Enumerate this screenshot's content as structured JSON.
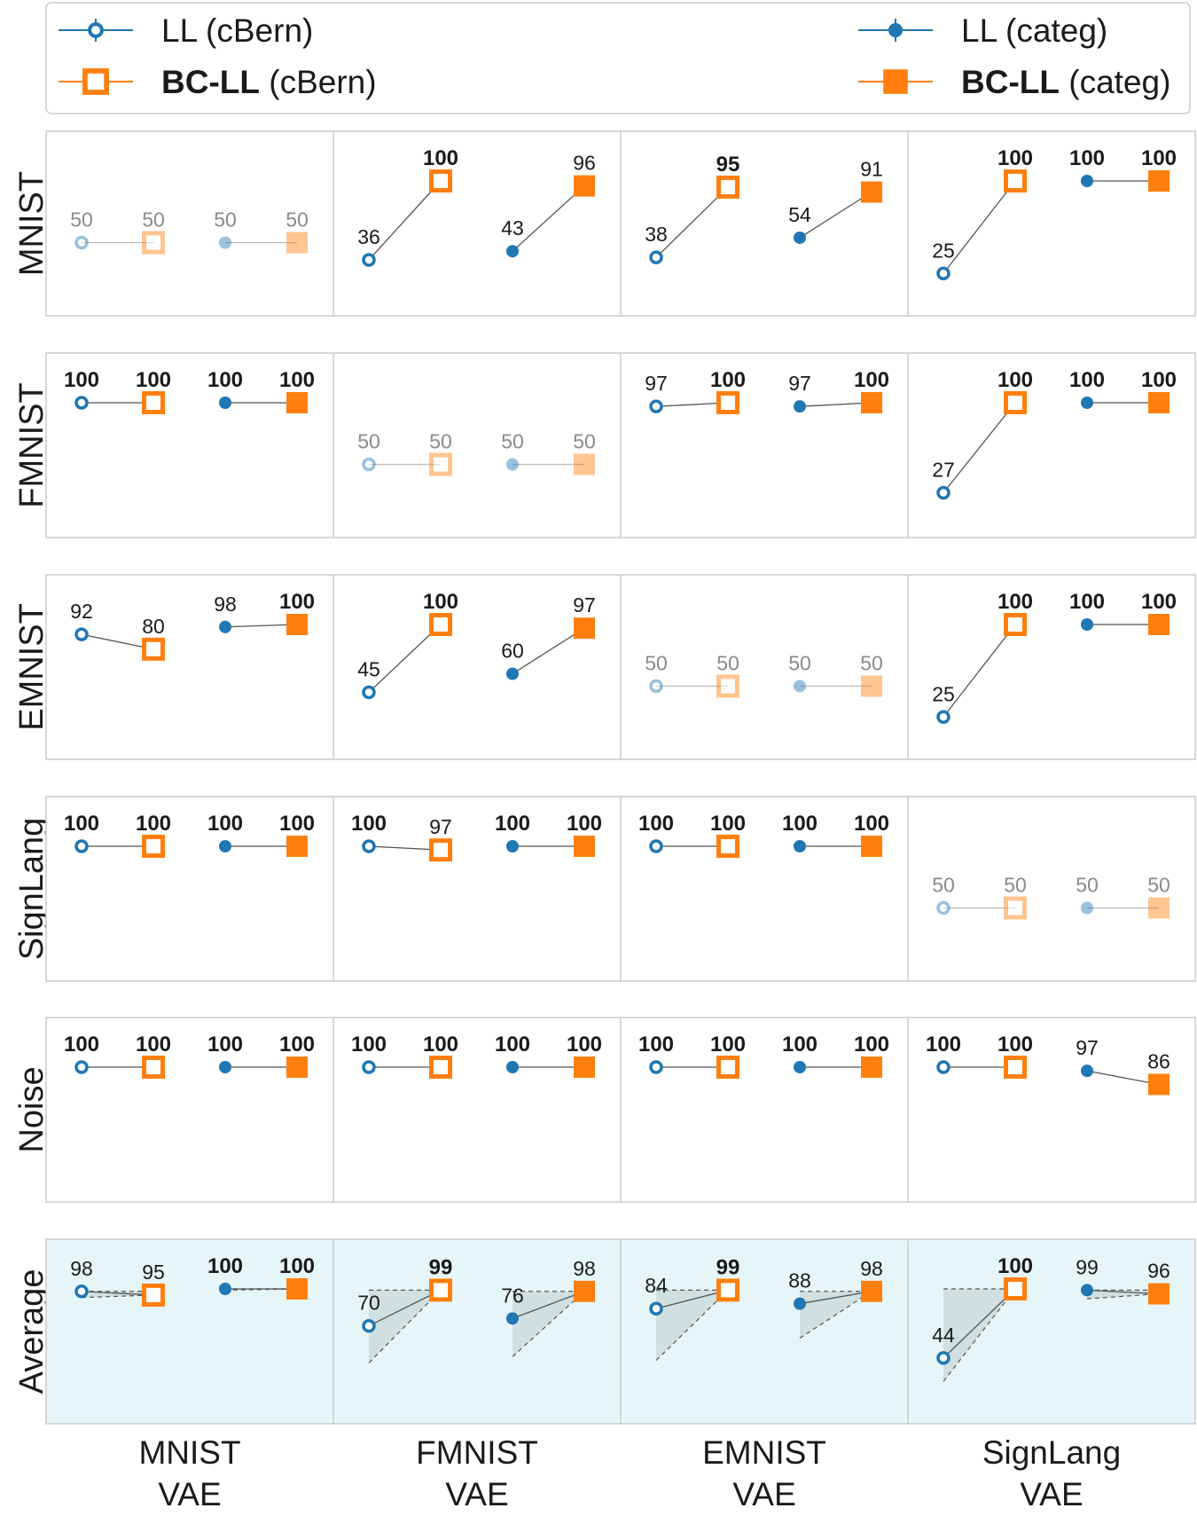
{
  "colors": {
    "blue": "#1f77b4",
    "orange": "#ff7f0e",
    "avg_bg": "#e6f6f8",
    "frame": "#cccccc",
    "muted_text": "#8a8a8a",
    "text": "#1a1a1a",
    "shade": "#c8d8d8"
  },
  "legend": {
    "entries": [
      {
        "key": "ll_cbern",
        "label_bold": "",
        "label_rest": "LL (cBern)",
        "marker": "open-circle",
        "color": "#1f77b4"
      },
      {
        "key": "bcll_cbern",
        "label_bold": "BC-LL",
        "label_rest": " (cBern)",
        "marker": "open-square",
        "color": "#ff7f0e"
      },
      {
        "key": "ll_categ",
        "label_bold": "",
        "label_rest": "LL (categ)",
        "marker": "filled-circle",
        "color": "#1f77b4"
      },
      {
        "key": "bcll_categ",
        "label_bold": "BC-LL",
        "label_rest": " (categ)",
        "marker": "filled-square",
        "color": "#ff7f0e"
      }
    ]
  },
  "chart_data": {
    "type": "slope-grid",
    "description_units": "percent",
    "ylim": [
      0,
      110
    ],
    "row_labels": [
      "MNIST",
      "FMNIST",
      "EMNIST",
      "SignLang",
      "Noise",
      "Average"
    ],
    "column_labels": [
      {
        "line1": "MNIST",
        "line2": "VAE"
      },
      {
        "line1": "FMNIST",
        "line2": "VAE"
      },
      {
        "line1": "EMNIST",
        "line2": "VAE"
      },
      {
        "line1": "SignLang",
        "line2": "VAE"
      }
    ],
    "series_order": [
      "LL (cBern)",
      "BC-LL (cBern)",
      "LL (categ)",
      "BC-LL (categ)"
    ],
    "cells": [
      [
        {
          "values": [
            50,
            50,
            50,
            50
          ],
          "bold": [
            false,
            false,
            false,
            false
          ],
          "muted": true
        },
        {
          "values": [
            36,
            100,
            43,
            96
          ],
          "bold": [
            false,
            true,
            false,
            false
          ],
          "muted": false
        },
        {
          "values": [
            38,
            95,
            54,
            91
          ],
          "bold": [
            false,
            true,
            false,
            false
          ],
          "muted": false
        },
        {
          "values": [
            25,
            100,
            100,
            100
          ],
          "bold": [
            false,
            true,
            true,
            true
          ],
          "muted": false
        }
      ],
      [
        {
          "values": [
            100,
            100,
            100,
            100
          ],
          "bold": [
            true,
            true,
            true,
            true
          ],
          "muted": false
        },
        {
          "values": [
            50,
            50,
            50,
            50
          ],
          "bold": [
            false,
            false,
            false,
            false
          ],
          "muted": true
        },
        {
          "values": [
            97,
            100,
            97,
            100
          ],
          "bold": [
            false,
            true,
            false,
            true
          ],
          "muted": false
        },
        {
          "values": [
            27,
            100,
            100,
            100
          ],
          "bold": [
            false,
            true,
            true,
            true
          ],
          "muted": false
        }
      ],
      [
        {
          "values": [
            92,
            80,
            98,
            100
          ],
          "bold": [
            false,
            false,
            false,
            true
          ],
          "muted": false
        },
        {
          "values": [
            45,
            100,
            60,
            97
          ],
          "bold": [
            false,
            true,
            false,
            false
          ],
          "muted": false
        },
        {
          "values": [
            50,
            50,
            50,
            50
          ],
          "bold": [
            false,
            false,
            false,
            false
          ],
          "muted": true
        },
        {
          "values": [
            25,
            100,
            100,
            100
          ],
          "bold": [
            false,
            true,
            true,
            true
          ],
          "muted": false
        }
      ],
      [
        {
          "values": [
            100,
            100,
            100,
            100
          ],
          "bold": [
            true,
            true,
            true,
            true
          ],
          "muted": false
        },
        {
          "values": [
            100,
            97,
            100,
            100
          ],
          "bold": [
            true,
            false,
            true,
            true
          ],
          "muted": false
        },
        {
          "values": [
            100,
            100,
            100,
            100
          ],
          "bold": [
            true,
            true,
            true,
            true
          ],
          "muted": false
        },
        {
          "values": [
            50,
            50,
            50,
            50
          ],
          "bold": [
            false,
            false,
            false,
            false
          ],
          "muted": true
        }
      ],
      [
        {
          "values": [
            100,
            100,
            100,
            100
          ],
          "bold": [
            true,
            true,
            true,
            true
          ],
          "muted": false
        },
        {
          "values": [
            100,
            100,
            100,
            100
          ],
          "bold": [
            true,
            true,
            true,
            true
          ],
          "muted": false
        },
        {
          "values": [
            100,
            100,
            100,
            100
          ],
          "bold": [
            true,
            true,
            true,
            true
          ],
          "muted": false
        },
        {
          "values": [
            100,
            100,
            97,
            86
          ],
          "bold": [
            true,
            true,
            false,
            false
          ],
          "muted": false
        }
      ],
      [
        {
          "values": [
            98,
            95,
            100,
            100
          ],
          "bold": [
            false,
            false,
            true,
            true
          ],
          "muted": false,
          "range_low": [
            93,
            90,
            99,
            93
          ]
        },
        {
          "values": [
            70,
            99,
            76,
            98
          ],
          "bold": [
            false,
            true,
            false,
            false
          ],
          "muted": false,
          "range_low": [
            40,
            40,
            45,
            45
          ]
        },
        {
          "values": [
            84,
            99,
            88,
            98
          ],
          "bold": [
            false,
            true,
            false,
            false
          ],
          "muted": false,
          "range_low": [
            42,
            42,
            60,
            60
          ]
        },
        {
          "values": [
            44,
            100,
            99,
            96
          ],
          "bold": [
            false,
            true,
            false,
            false
          ],
          "muted": false,
          "range_low": [
            25,
            25,
            92,
            92
          ]
        }
      ]
    ]
  }
}
